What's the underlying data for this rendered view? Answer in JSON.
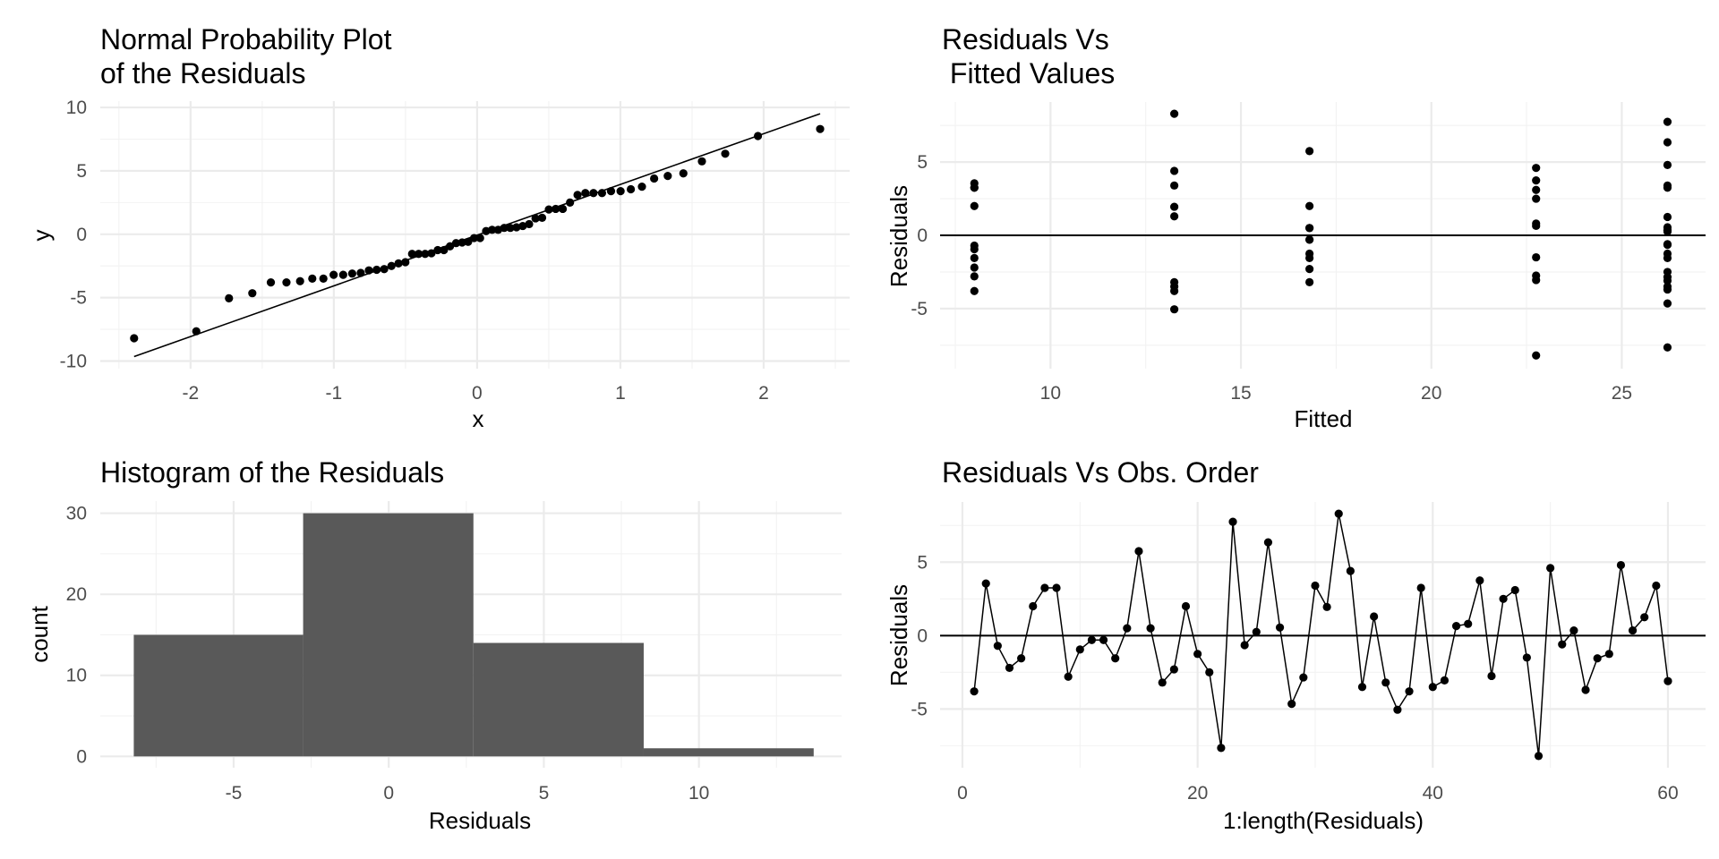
{
  "figure": {
    "panels": [
      "qq",
      "fitted",
      "hist",
      "order"
    ]
  },
  "chart_data": [
    {
      "id": "qq",
      "type": "scatter",
      "title": [
        "Normal Probability Plot",
        "of the Residuals"
      ],
      "xlabel": "x",
      "ylabel": "y",
      "xticks": [
        -2,
        -1,
        0,
        1,
        2
      ],
      "xtick_labels": [
        "-2",
        "-1",
        "0",
        "1",
        "2"
      ],
      "yticks": [
        -10,
        -5,
        0,
        5,
        10
      ],
      "ytick_labels": [
        "-10",
        "-5",
        "0",
        "5",
        "10"
      ],
      "xlim": [
        -2.63,
        2.6
      ],
      "ylim": [
        -10.6,
        10.5
      ],
      "grid": true,
      "points_from": "sorted residuals vs normal quantiles ppoints(n)",
      "reference_line": {
        "slope": 4.0,
        "intercept": -0.07
      }
    },
    {
      "id": "fitted",
      "type": "scatter",
      "title": [
        "Residuals Vs",
        " Fitted Values"
      ],
      "xlabel": "Fitted",
      "ylabel": "Residuals",
      "xticks": [
        10,
        15,
        20,
        25
      ],
      "xtick_labels": [
        "10",
        "15",
        "20",
        "25"
      ],
      "yticks": [
        -5,
        0,
        5
      ],
      "ytick_labels": [
        "-5",
        "0",
        "5"
      ],
      "xlim": [
        7.1,
        27.2
      ],
      "ylim": [
        -9.1,
        9.1
      ],
      "grid": true,
      "hline": 0,
      "fitted_levels": [
        8.0,
        13.25,
        16.8,
        22.75,
        26.2
      ],
      "fitted_group_of_obs": [
        0,
        0,
        0,
        0,
        0,
        0,
        0,
        0,
        0,
        0,
        2,
        2,
        2,
        2,
        2,
        2,
        2,
        2,
        2,
        2,
        4,
        4,
        4,
        4,
        4,
        4,
        4,
        4,
        4,
        1,
        1,
        1,
        1,
        1,
        1,
        1,
        1,
        1,
        4,
        4,
        3,
        3,
        3,
        3,
        3,
        3,
        3,
        3,
        3,
        3,
        4,
        4,
        4,
        4,
        4,
        4,
        4,
        4,
        4,
        4
      ]
    },
    {
      "id": "hist",
      "type": "bar",
      "title": [
        "Histogram of the Residuals"
      ],
      "xlabel": "Residuals",
      "ylabel": "count",
      "bins": [
        {
          "from": -8.22,
          "to": -2.76,
          "count": 15
        },
        {
          "from": -2.76,
          "to": 2.73,
          "count": 30
        },
        {
          "from": 2.73,
          "to": 8.22,
          "count": 14
        },
        {
          "from": 8.22,
          "to": 13.7,
          "count": 1
        }
      ],
      "xticks": [
        -5,
        0,
        5,
        10
      ],
      "xtick_labels": [
        "-5",
        "0",
        "5",
        "10"
      ],
      "yticks": [
        0,
        10,
        20,
        30
      ],
      "ytick_labels": [
        "0",
        "10",
        "20",
        "30"
      ],
      "xlim": [
        -9.3,
        14.6
      ],
      "ylim": [
        -1.4,
        31.5
      ],
      "grid": true,
      "bar_color": "#595959"
    },
    {
      "id": "order",
      "type": "line",
      "title": [
        "Residuals Vs Obs. Order"
      ],
      "xlabel": "1:length(Residuals)",
      "ylabel": "Residuals",
      "xticks": [
        0,
        20,
        40,
        60
      ],
      "xtick_labels": [
        "0",
        "20",
        "40",
        "60"
      ],
      "yticks": [
        -5,
        0,
        5
      ],
      "ytick_labels": [
        "-5",
        "0",
        "5"
      ],
      "xlim": [
        -1.9,
        63.2
      ],
      "ylim": [
        -9.0,
        9.1
      ],
      "grid": true,
      "hline": 0
    }
  ],
  "residuals": [
    -3.8,
    3.55,
    -0.7,
    -2.2,
    -1.55,
    2.0,
    3.25,
    3.25,
    -2.8,
    -0.95,
    -0.3,
    -0.3,
    -1.55,
    0.5,
    5.75,
    0.5,
    -3.2,
    -2.3,
    2.0,
    -1.25,
    -2.5,
    -7.65,
    7.75,
    -0.65,
    0.25,
    6.35,
    0.55,
    -4.65,
    -2.85,
    3.4,
    1.95,
    8.3,
    4.4,
    -3.5,
    1.3,
    -3.2,
    -5.05,
    -3.8,
    3.25,
    -3.5,
    -3.05,
    0.65,
    0.8,
    3.75,
    -2.75,
    2.5,
    3.1,
    -1.5,
    -8.2,
    4.6,
    -0.6,
    0.35,
    -3.7,
    -1.55,
    -1.25,
    4.8,
    0.35,
    1.25,
    3.4,
    -3.1
  ]
}
